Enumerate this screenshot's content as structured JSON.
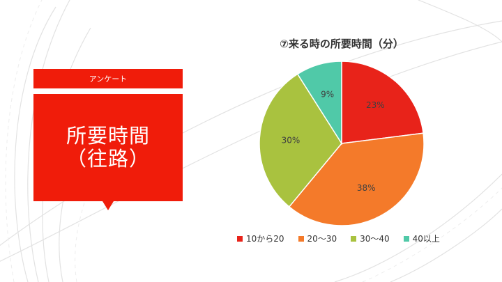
{
  "slide": {
    "label": "アンケート",
    "title_line1": "所要時間",
    "title_line2": "（往路）"
  },
  "colors": {
    "accent": "#f01c0a",
    "slice_1": "#e8231a",
    "slice_2": "#f47a2a",
    "slice_3": "#a9c23f",
    "slice_4": "#50c9a8"
  },
  "chart_data": {
    "type": "pie",
    "title": "⑦来る時の所要時間（分）",
    "categories": [
      "10から20",
      "20～30",
      "30～40",
      "40以上"
    ],
    "values": [
      23,
      38,
      30,
      9
    ],
    "data_labels": [
      "23%",
      "38%",
      "30%",
      "9%"
    ],
    "legend_position": "bottom"
  }
}
